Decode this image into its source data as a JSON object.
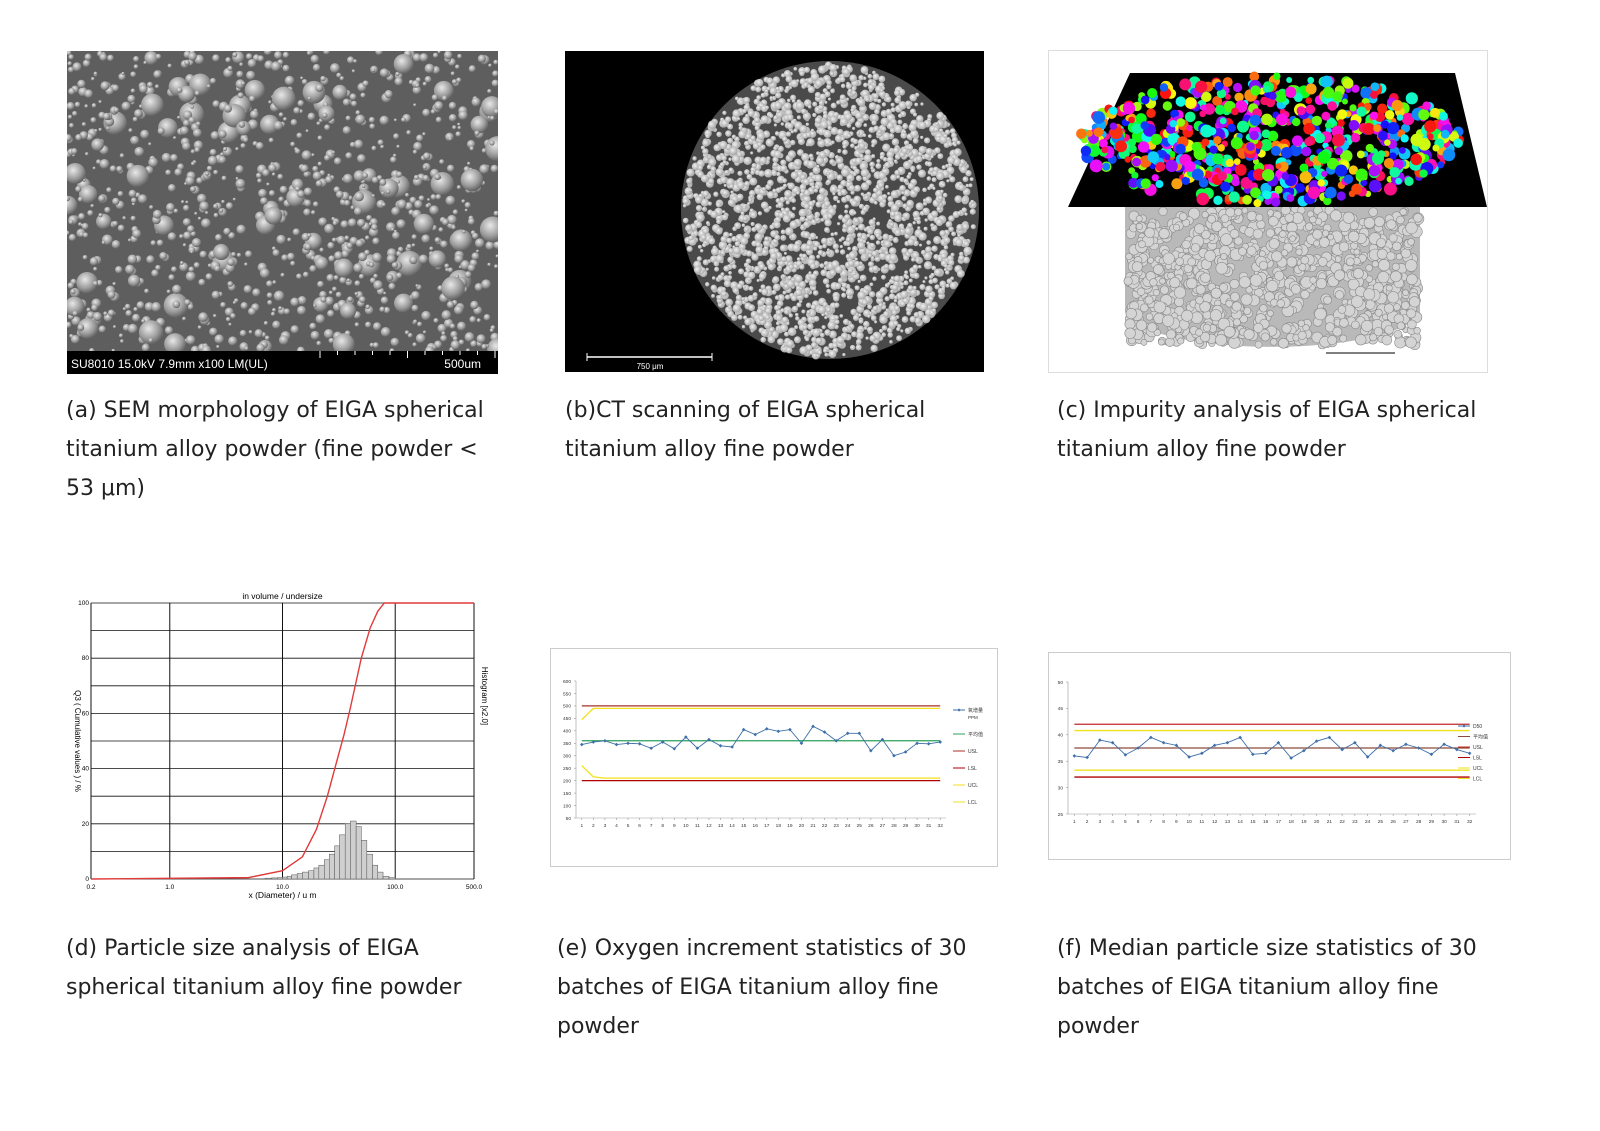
{
  "figures": [
    {
      "caption": "(a) SEM morphology of EIGA spherical titanium alloy powder (fine powder < 53 μm)",
      "info": "SU8010 15.0kV 7.9mm x100 LM(UL)",
      "scale": "500um"
    },
    {
      "caption": "(b)CT scanning of EIGA spherical titanium alloy fine powder",
      "scale": "750 μm"
    },
    {
      "caption": "(c) Impurity analysis of EIGA spherical titanium alloy fine powder"
    },
    {
      "caption": "(d) Particle size analysis of EIGA spherical titanium alloy fine powder",
      "chart": {
        "type": "distribution",
        "title": "in volume / undersize",
        "x_label": "x (Diameter) / u m",
        "y_label": "Q3 ( Cumulative values ) / %",
        "y2_label": "Histogram [x2.0]",
        "xscale": "log",
        "xlim": [
          0.2,
          500
        ],
        "xticks": [
          0.2,
          {
            "value": 1,
            "label": "1.0"
          },
          {
            "value": 10,
            "label": "10.0"
          },
          {
            "value": 100,
            "label": "100.0"
          },
          {
            "value": 500,
            "label": "500.0"
          }
        ],
        "ylim": [
          0,
          100
        ],
        "yticks": [
          0,
          20,
          40,
          60,
          80,
          100
        ],
        "yminor": [
          10,
          30,
          50,
          70,
          90
        ],
        "grid": true,
        "curve": {
          "color": "#e03a3a",
          "x": [
            0.2,
            5,
            10,
            15,
            20,
            25,
            30,
            35,
            40,
            50,
            60,
            70,
            80,
            500
          ],
          "values": [
            0,
            0.5,
            3,
            8,
            18,
            30,
            42,
            52,
            62,
            80,
            91,
            97,
            100,
            100
          ]
        },
        "histogram": {
          "color": "#cfcfcf",
          "bins": [
            7,
            8,
            9,
            10,
            11,
            12,
            13.5,
            15,
            17,
            19,
            21,
            23.5,
            26,
            29,
            32,
            36,
            40,
            45,
            50,
            56,
            63,
            70,
            78,
            88,
            100
          ],
          "counts": [
            0.3,
            0.4,
            0.5,
            0.7,
            1,
            1.5,
            2,
            2.5,
            3,
            4,
            5,
            7,
            9,
            12,
            16,
            20,
            21,
            19,
            14,
            9,
            5,
            2.5,
            1,
            0.5
          ]
        }
      }
    },
    {
      "caption": "(e) Oxygen increment statistics of 30 batches of EIGA titanium alloy fine powder",
      "chart": {
        "type": "line",
        "xlim": [
          0.5,
          32.5
        ],
        "ylim": [
          50,
          600
        ],
        "yticks": [
          50,
          100,
          150,
          200,
          250,
          300,
          350,
          400,
          450,
          500,
          550,
          600
        ],
        "xticks": [
          1,
          2,
          3,
          4,
          5,
          6,
          7,
          8,
          9,
          10,
          11,
          12,
          13,
          14,
          15,
          16,
          17,
          18,
          19,
          20,
          21,
          22,
          23,
          24,
          25,
          26,
          27,
          28,
          29,
          30,
          31,
          32
        ],
        "x": [
          1,
          2,
          3,
          4,
          5,
          6,
          7,
          8,
          9,
          10,
          11,
          12,
          13,
          14,
          15,
          16,
          17,
          18,
          19,
          20,
          21,
          22,
          23,
          24,
          25,
          26,
          27,
          28,
          29,
          30,
          31,
          32
        ],
        "series": [
          {
            "name": "氧增量",
            "note": "PPM",
            "color": "#3f6fa8",
            "marker": true,
            "values": [
              345,
              355,
              360,
              345,
              350,
              348,
              330,
              355,
              328,
              375,
              330,
              365,
              340,
              335,
              405,
              385,
              408,
              398,
              405,
              350,
              418,
              395,
              360,
              390,
              390,
              320,
              365,
              300,
              315,
              350,
              348,
              355
            ]
          },
          {
            "name": "平均值",
            "color": "#2aa05a",
            "values": [
              360,
              360,
              360,
              360,
              360,
              360,
              360,
              360,
              360,
              360,
              360,
              360,
              360,
              360,
              360,
              360,
              360,
              360,
              360,
              360,
              360,
              360,
              360,
              360,
              360,
              360,
              360,
              360,
              360,
              360,
              360,
              360
            ]
          },
          {
            "name": "USL",
            "color": "#a8322a",
            "values": [
              500,
              500,
              500,
              500,
              500,
              500,
              500,
              500,
              500,
              500,
              500,
              500,
              500,
              500,
              500,
              500,
              500,
              500,
              500,
              500,
              500,
              500,
              500,
              500,
              500,
              500,
              500,
              500,
              500,
              500,
              500,
              500
            ]
          },
          {
            "name": "LSL",
            "color": "#b00000",
            "values": [
              200,
              200,
              200,
              200,
              200,
              200,
              200,
              200,
              200,
              200,
              200,
              200,
              200,
              200,
              200,
              200,
              200,
              200,
              200,
              200,
              200,
              200,
              200,
              200,
              200,
              200,
              200,
              200,
              200,
              200,
              200,
              200
            ]
          },
          {
            "name": "UCL",
            "color": "#f0e21a",
            "values": [
              445,
              490,
              490,
              490,
              490,
              490,
              490,
              490,
              490,
              490,
              490,
              490,
              490,
              490,
              490,
              490,
              490,
              490,
              490,
              490,
              490,
              490,
              490,
              490,
              490,
              490,
              490,
              490,
              490,
              490,
              490,
              490
            ]
          },
          {
            "name": "LCL",
            "color": "#f0e21a",
            "values": [
              260,
              215,
              210,
              210,
              210,
              210,
              210,
              210,
              210,
              210,
              210,
              210,
              210,
              210,
              210,
              210,
              210,
              210,
              210,
              210,
              210,
              210,
              210,
              210,
              210,
              210,
              210,
              210,
              210,
              210,
              210,
              210
            ]
          }
        ]
      }
    },
    {
      "caption": "(f) Median particle size statistics of 30 batches of EIGA titanium alloy fine powder",
      "chart": {
        "type": "line",
        "xlim": [
          0.5,
          32.5
        ],
        "ylim": [
          25,
          50
        ],
        "yticks": [
          25,
          30,
          35,
          40,
          45,
          50
        ],
        "xticks": [
          1,
          2,
          3,
          4,
          5,
          6,
          7,
          8,
          9,
          10,
          11,
          12,
          13,
          14,
          15,
          16,
          17,
          18,
          19,
          20,
          21,
          22,
          23,
          24,
          25,
          26,
          27,
          28,
          29,
          30,
          31,
          32
        ],
        "x": [
          1,
          2,
          3,
          4,
          5,
          6,
          7,
          8,
          9,
          10,
          11,
          12,
          13,
          14,
          15,
          16,
          17,
          18,
          19,
          20,
          21,
          22,
          23,
          24,
          25,
          26,
          27,
          28,
          29,
          30,
          31,
          32
        ],
        "series": [
          {
            "name": "D50",
            "color": "#3f6fa8",
            "marker": true,
            "values": [
              36,
              35.7,
              39,
              38.5,
              36.2,
              37.5,
              39.5,
              38.5,
              38,
              35.8,
              36.5,
              38,
              38.5,
              39.5,
              36.3,
              36.5,
              38.5,
              35.6,
              37,
              38.8,
              39.5,
              37.2,
              38.5,
              35.8,
              38,
              37,
              38.2,
              37.5,
              36.3,
              38.2,
              37.2,
              36.5
            ]
          },
          {
            "name": "平均值",
            "color": "#8a4a3a",
            "values": [
              37.5,
              37.5,
              37.5,
              37.5,
              37.5,
              37.5,
              37.5,
              37.5,
              37.5,
              37.5,
              37.5,
              37.5,
              37.5,
              37.5,
              37.5,
              37.5,
              37.5,
              37.5,
              37.5,
              37.5,
              37.5,
              37.5,
              37.5,
              37.5,
              37.5,
              37.5,
              37.5,
              37.5,
              37.5,
              37.5,
              37.5,
              37.5
            ]
          },
          {
            "name": "USL",
            "color": "#c0282a",
            "values": [
              42,
              42,
              42,
              42,
              42,
              42,
              42,
              42,
              42,
              42,
              42,
              42,
              42,
              42,
              42,
              42,
              42,
              42,
              42,
              42,
              42,
              42,
              42,
              42,
              42,
              42,
              42,
              42,
              42,
              42,
              42,
              42
            ]
          },
          {
            "name": "LSL",
            "color": "#b00000",
            "values": [
              32,
              32,
              32,
              32,
              32,
              32,
              32,
              32,
              32,
              32,
              32,
              32,
              32,
              32,
              32,
              32,
              32,
              32,
              32,
              32,
              32,
              32,
              32,
              32,
              32,
              32,
              32,
              32,
              32,
              32,
              32,
              32
            ]
          },
          {
            "name": "UCL",
            "color": "#f0e21a",
            "values": [
              40.8,
              40.8,
              40.8,
              40.8,
              40.8,
              40.8,
              40.8,
              40.8,
              40.8,
              40.8,
              40.8,
              40.8,
              40.8,
              40.8,
              40.8,
              40.8,
              40.8,
              40.8,
              40.8,
              40.8,
              40.8,
              40.8,
              40.8,
              40.8,
              40.8,
              40.8,
              40.8,
              40.8,
              40.8,
              40.8,
              40.8,
              40.8
            ]
          },
          {
            "name": "LCL",
            "color": "#f0e21a",
            "values": [
              33.3,
              33.3,
              33.3,
              33.3,
              33.3,
              33.3,
              33.3,
              33.3,
              33.3,
              33.3,
              33.3,
              33.3,
              33.3,
              33.3,
              33.3,
              33.3,
              33.3,
              33.3,
              33.3,
              33.3,
              33.3,
              33.3,
              33.3,
              33.3,
              33.3,
              33.3,
              33.3,
              33.3,
              33.3,
              33.3,
              33.3,
              33.3
            ]
          }
        ]
      }
    }
  ]
}
